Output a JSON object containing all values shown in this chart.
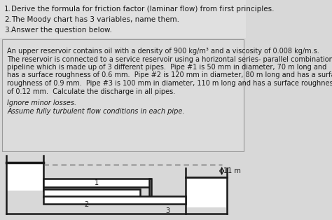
{
  "bg_color": "#d8d8d8",
  "box_bg": "#e8e8e8",
  "white": "#ffffff",
  "text_color": "#1a1a1a",
  "numbered_items": [
    "Derive the formula for friction factor (laminar flow) from first principles.",
    "The Moody chart has 3 variables, name them.",
    "Answer the question below."
  ],
  "para_lines": [
    "An upper reservoir contains oil with a density of 900 kg/m³ and a viscosity of 0.008 kg/m.s.",
    "The reservoir is connected to a service reservoir using a horizontal series- parallel combination",
    "pipeline which is made up of 3 different pipes.  Pipe #1 is 50 mm in diameter, 70 m long and",
    "has a surface roughness of 0.6 mm.  Pipe #2 is 120 mm in diameter, 80 m long and has a surface",
    "roughness of 0.9 mm.  Pipe #3 is 100 mm in diameter, 110 m long and has a surface roughness",
    "of 0.12 mm.  Calculate the discharge in all pipes."
  ],
  "italic_lines": [
    "Ignore minor losses.",
    "Assume fully turbulent flow conditions in each pipe."
  ],
  "height_label": "11 m",
  "pipe_labels": [
    "1",
    "2",
    "3"
  ],
  "font_size_list": 7.5,
  "font_size_body": 7.0
}
